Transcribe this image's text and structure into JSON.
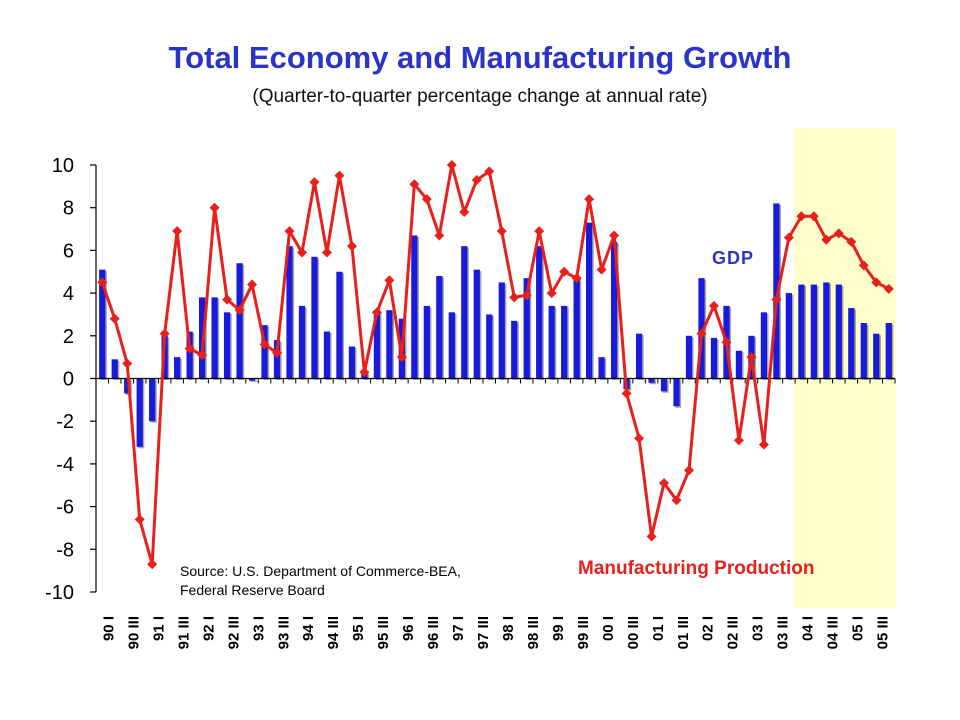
{
  "chart_data": {
    "type": "bar+line",
    "title": "Total Economy and Manufacturing Growth",
    "subtitle": "(Quarter-to-quarter percentage change at annual rate)",
    "ylim": [
      -10,
      10
    ],
    "yticks": [
      "10",
      "8",
      "6",
      "4",
      "2",
      "0",
      "-2",
      "-4",
      "-6",
      "-8",
      "-10"
    ],
    "x_labels": [
      "90 I",
      "90 III",
      "91 I",
      "91 III",
      "92 I",
      "92 III",
      "93 I",
      "93 III",
      "94 I",
      "94 III",
      "95 I",
      "95 III",
      "96 I",
      "96 III",
      "97 I",
      "97 III",
      "98 I",
      "98 III",
      "99 I",
      "99 III",
      "00 I",
      "00 III",
      "01 I",
      "01 III",
      "02 I",
      "02 III",
      "03 I",
      "03 III",
      "04 I",
      "04 III",
      "05 I",
      "05 III"
    ],
    "quarters": [
      "90 I",
      "90 II",
      "90 III",
      "90 IV",
      "91 I",
      "91 II",
      "91 III",
      "91 IV",
      "92 I",
      "92 II",
      "92 III",
      "92 IV",
      "93 I",
      "93 II",
      "93 III",
      "93 IV",
      "94 I",
      "94 II",
      "94 III",
      "94 IV",
      "95 I",
      "95 II",
      "95 III",
      "95 IV",
      "96 I",
      "96 II",
      "96 III",
      "96 IV",
      "97 I",
      "97 II",
      "97 III",
      "97 IV",
      "98 I",
      "98 II",
      "98 III",
      "98 IV",
      "99 I",
      "99 II",
      "99 III",
      "99 IV",
      "00 I",
      "00 II",
      "00 III",
      "00 IV",
      "01 I",
      "01 II",
      "01 III",
      "01 IV",
      "02 I",
      "02 II",
      "02 III",
      "02 IV",
      "03 I",
      "03 II",
      "03 III",
      "03 IV",
      "04 I",
      "04 II",
      "04 III",
      "04 IV",
      "05 I",
      "05 II",
      "05 III",
      "05 IV"
    ],
    "series": [
      {
        "name": "GDP",
        "kind": "bar",
        "color": "#1a1adc",
        "values": [
          5.1,
          0.9,
          -0.7,
          -3.2,
          -2.0,
          2.0,
          1.0,
          2.2,
          3.8,
          3.8,
          3.1,
          5.4,
          -0.1,
          2.5,
          1.8,
          6.2,
          3.4,
          5.7,
          2.2,
          5.0,
          1.5,
          0.3,
          3.2,
          3.2,
          2.8,
          6.7,
          3.4,
          4.8,
          3.1,
          6.2,
          5.1,
          3.0,
          4.5,
          2.7,
          4.7,
          6.2,
          3.4,
          3.4,
          4.8,
          7.3,
          1.0,
          6.4,
          -0.5,
          2.1,
          -0.2,
          -0.6,
          -1.3,
          2.0,
          4.7,
          1.9,
          3.4,
          1.3,
          2.0,
          3.1,
          8.2,
          4.0,
          4.4,
          4.4,
          4.5,
          4.4,
          3.3,
          2.6,
          2.1,
          2.6
        ]
      },
      {
        "name": "Manufacturing Production",
        "kind": "line",
        "color": "#e8201c",
        "values": [
          4.5,
          2.8,
          0.7,
          -6.6,
          -8.7,
          2.1,
          6.9,
          1.4,
          1.1,
          8.0,
          3.7,
          3.2,
          4.4,
          1.6,
          1.2,
          6.9,
          5.9,
          9.2,
          5.9,
          9.5,
          6.2,
          0.3,
          3.1,
          4.6,
          1.0,
          9.1,
          8.4,
          6.7,
          10.0,
          7.8,
          9.3,
          9.7,
          6.9,
          3.8,
          3.9,
          6.9,
          4.0,
          5.0,
          4.7,
          8.4,
          5.1,
          6.7,
          -0.7,
          -2.8,
          -7.4,
          -4.9,
          -5.7,
          -4.3,
          2.1,
          3.4,
          1.7,
          -2.9,
          1.0,
          -3.1,
          3.7,
          6.6,
          7.6,
          7.6,
          6.5,
          6.8,
          6.4,
          5.3,
          4.5,
          4.2
        ]
      }
    ],
    "highlight": {
      "from_quarter": "04 I",
      "to_quarter": "05 IV",
      "color": "#ffffcc"
    },
    "annotations": {
      "gdp_label": "GDP",
      "mfg_label": "Manufacturing Production",
      "source_line1": "Source: U.S. Department of Commerce-BEA,",
      "source_line2": "Federal Reserve Board"
    }
  }
}
